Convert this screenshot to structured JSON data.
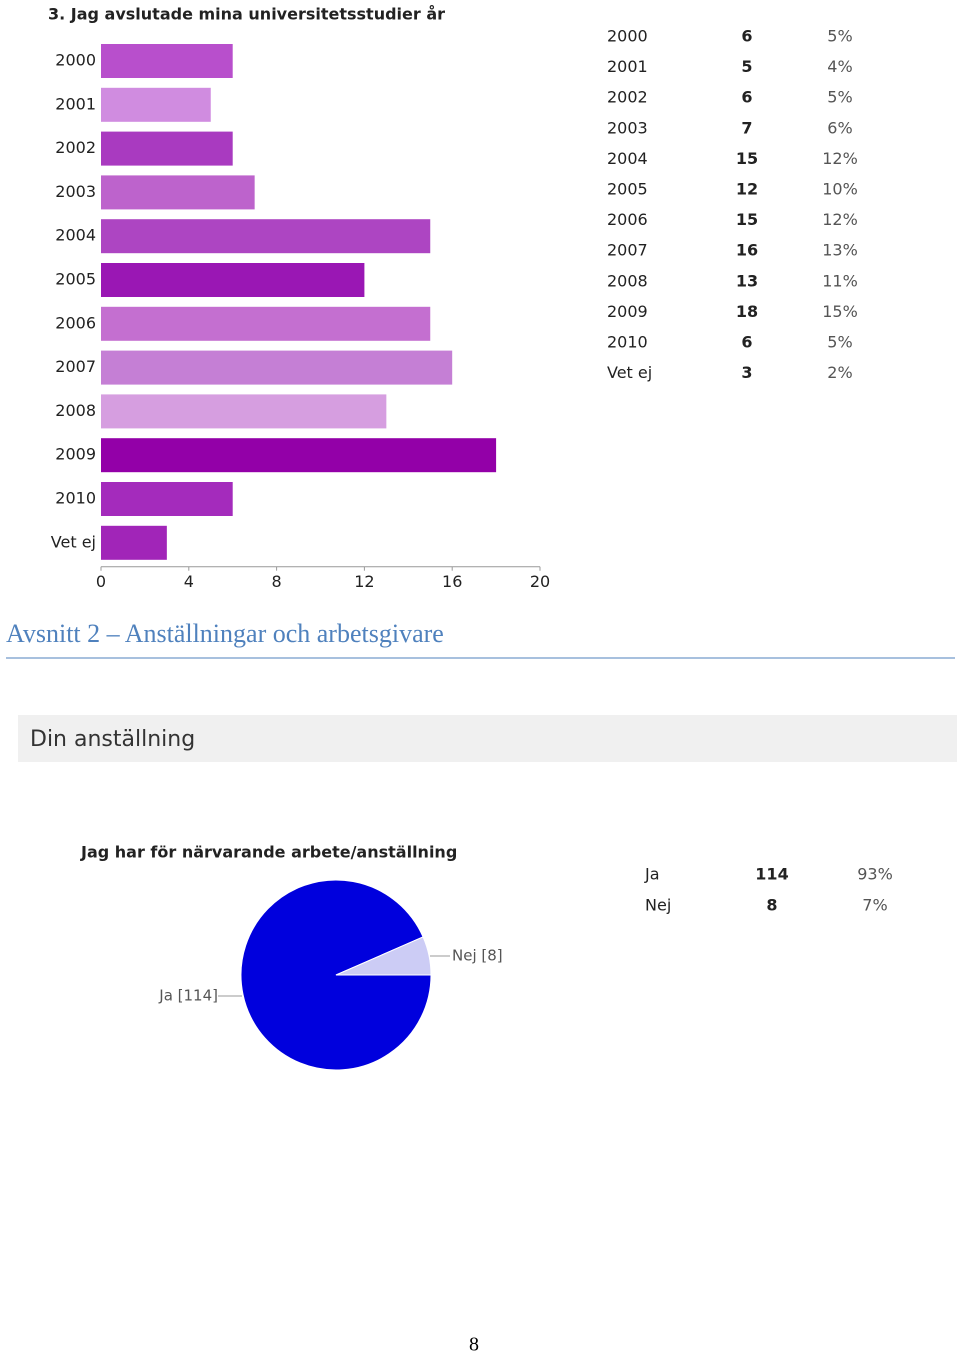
{
  "chart_data": [
    {
      "type": "hbar",
      "title": "3. Jag avslutade mina universitetsstudier år",
      "categories": [
        "2000",
        "2001",
        "2002",
        "2003",
        "2004",
        "2005",
        "2006",
        "2007",
        "2008",
        "2009",
        "2010",
        "Vet ej"
      ],
      "values": [
        6,
        5,
        6,
        7,
        15,
        12,
        15,
        16,
        13,
        18,
        6,
        3
      ],
      "colors": [
        "#b84fcc",
        "#d08ce0",
        "#a93ac0",
        "#bd63cc",
        "#ad45c2",
        "#9a17b4",
        "#c46fd0",
        "#c57fd5",
        "#d69ee0",
        "#9300a8",
        "#a42bbc",
        "#a125b8"
      ],
      "xlim": [
        0,
        20
      ],
      "xticks": [
        0,
        4,
        8,
        12,
        16,
        20
      ],
      "percent_labels": [
        "5%",
        "4%",
        "5%",
        "6%",
        "12%",
        "10%",
        "12%",
        "13%",
        "11%",
        "15%",
        "5%",
        "2%"
      ]
    },
    {
      "type": "pie",
      "title": "Jag har för närvarande arbete/anställning",
      "categories": [
        "Ja",
        "Nej"
      ],
      "values": [
        114,
        8
      ],
      "value_labels": [
        "Ja [114]",
        "Nej [8]"
      ],
      "colors": [
        "#0000dd",
        "#ccccf5"
      ],
      "percent_labels": [
        "93%",
        "7%"
      ]
    }
  ],
  "heading": "Avsnitt 2 – Anställningar och arbetsgivare",
  "section": "Din anställning",
  "page_number": "8"
}
